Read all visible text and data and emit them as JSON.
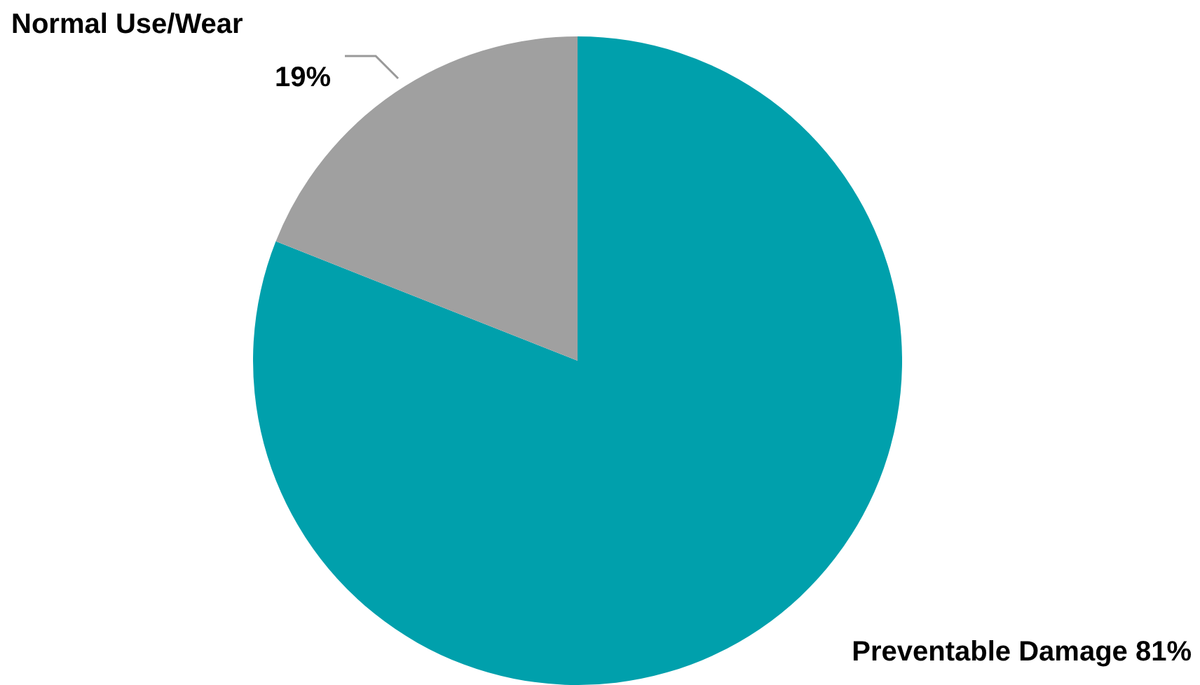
{
  "chart_data": {
    "type": "pie",
    "categories": [
      "Preventable Damage",
      "Normal Use/Wear"
    ],
    "values": [
      81,
      19
    ],
    "colors": [
      "#00a0ac",
      "#a0a0a0"
    ],
    "value_labels": [
      "81%",
      "19%"
    ],
    "legend": false
  }
}
